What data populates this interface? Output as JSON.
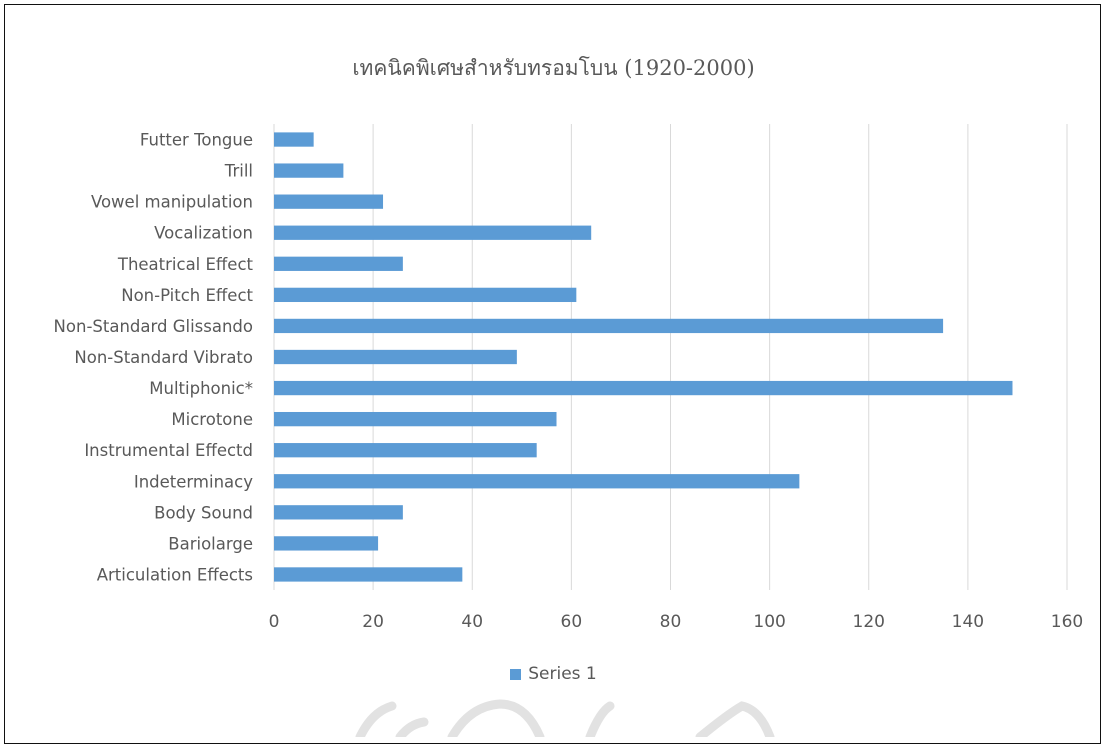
{
  "colors": {
    "bar": "#5b9bd5",
    "grid": "#d9d9d9",
    "text": "#595959"
  },
  "chart_data": {
    "type": "bar",
    "orientation": "horizontal",
    "title": "เทคนิคพิเศษสำหรับทรอมโบน (1920-2000)",
    "categories": [
      "Futter Tongue",
      "Trill",
      "Vowel manipulation",
      "Vocalization",
      "Theatrical Effect",
      "Non-Pitch Effect",
      "Non-Standard Glissando",
      "Non-Standard Vibrato",
      "Multiphonic*",
      "Microtone",
      "Instrumental Effectd",
      "Indeterminacy",
      "Body Sound",
      "Bariolarge",
      "Articulation Effects"
    ],
    "series": [
      {
        "name": "Series 1",
        "values": [
          8,
          14,
          22,
          64,
          26,
          61,
          135,
          49,
          149,
          57,
          53,
          106,
          26,
          21,
          38
        ]
      }
    ],
    "xlim": [
      0,
      160
    ],
    "xticks": [
      "0",
      "20",
      "40",
      "60",
      "80",
      "100",
      "120",
      "140",
      "160"
    ],
    "grid": true,
    "legend_position": "bottom"
  }
}
